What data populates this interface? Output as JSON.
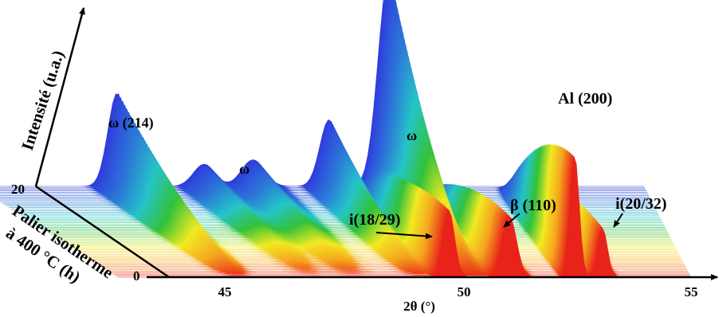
{
  "chart_data": {
    "type": "area",
    "title": "",
    "xlabel": "2θ (°)",
    "ylabel": "Intensité (u.a.)",
    "zlabel": "Palier isotherme à 400 °C (h)",
    "x_ticks": [
      "45",
      "50",
      "55"
    ],
    "z_ticks": [
      "0",
      "20"
    ],
    "xlim": [
      42.7,
      55.0
    ],
    "zlim": [
      0,
      20
    ],
    "colormap": [
      "#e8231a",
      "#f5a51e",
      "#f0ea22",
      "#33c23a",
      "#25c4c8",
      "#2c78d8",
      "#2f3fdc"
    ],
    "annotations": [
      {
        "text": "ω (214)",
        "x": 45.3
      },
      {
        "text": "ω",
        "x": 46.9
      },
      {
        "text": "ω",
        "x": 49.2
      },
      {
        "text": "Al (200)",
        "x": 51.3
      },
      {
        "text": "i(18/29)",
        "x": 49.9
      },
      {
        "text": "β (110)",
        "x": 51.3
      },
      {
        "text": "i(20/32)",
        "x": 54.1
      }
    ],
    "series": [
      {
        "time_h": 0,
        "peaks": [
          {
            "x": 49.8,
            "intensity": 0.55,
            "width": 0.18
          },
          {
            "x": 51.1,
            "intensity": 0.5,
            "width": 0.22
          },
          {
            "x": 52.5,
            "intensity": 1.0,
            "width": 0.14
          },
          {
            "x": 53.1,
            "intensity": 0.4,
            "width": 0.15
          }
        ]
      },
      {
        "time_h": 20,
        "peaks": [
          {
            "x": 45.3,
            "intensity": 0.42,
            "width": 0.24
          },
          {
            "x": 46.9,
            "intensity": 0.1,
            "width": 0.28
          },
          {
            "x": 47.8,
            "intensity": 0.12,
            "width": 0.3
          },
          {
            "x": 49.2,
            "intensity": 0.3,
            "width": 0.24
          },
          {
            "x": 50.3,
            "intensity": 0.95,
            "width": 0.28
          }
        ]
      }
    ]
  }
}
